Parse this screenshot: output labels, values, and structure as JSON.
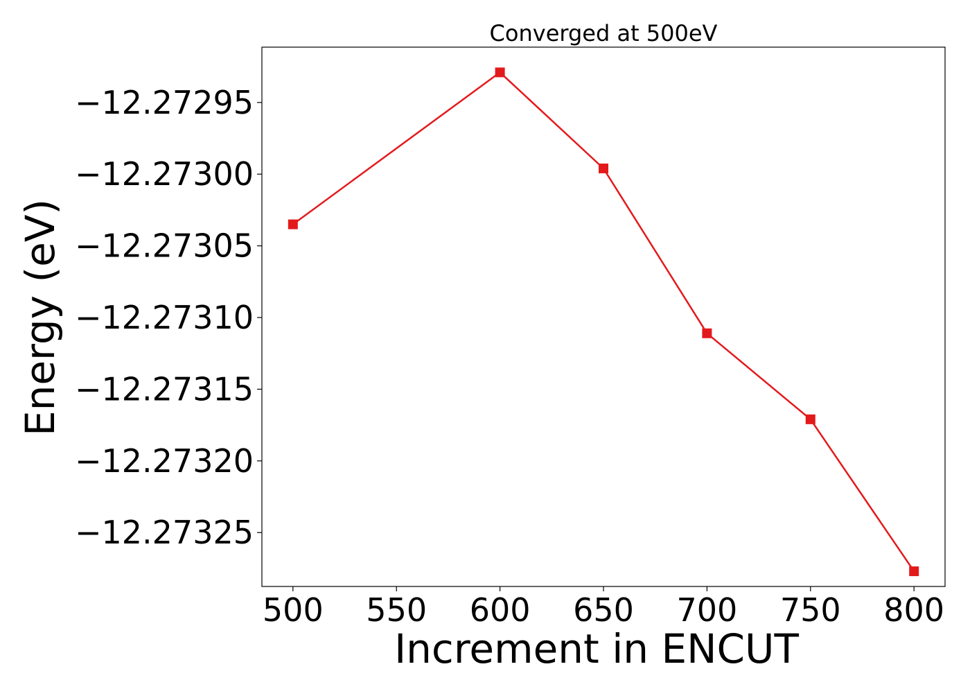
{
  "chart_data": {
    "type": "line",
    "title": "Converged at 500eV",
    "xlabel": "Increment in ENCUT",
    "ylabel": "Energy (eV)",
    "x": [
      500,
      600,
      650,
      700,
      750,
      800
    ],
    "series": [
      {
        "values": [
          -12.273035,
          -12.272929,
          -12.272996,
          -12.273111,
          -12.273171,
          -12.273277
        ],
        "color": "#e31a1c",
        "marker": "square"
      }
    ],
    "xticks": [
      500,
      550,
      600,
      650,
      700,
      750,
      800
    ],
    "xtick_labels": [
      "500",
      "550",
      "600",
      "650",
      "700",
      "750",
      "800"
    ],
    "yticks": [
      -12.27295,
      -12.273,
      -12.27305,
      -12.2731,
      -12.27315,
      -12.2732,
      -12.27325
    ],
    "ytick_labels": [
      "−12.27295",
      "−12.27300",
      "−12.27305",
      "−12.27310",
      "−12.27315",
      "−12.27320",
      "−12.27325"
    ],
    "xlim": [
      485,
      815
    ],
    "ylim": [
      -12.2732876,
      -12.2729114
    ],
    "grid": false,
    "legend": "none"
  }
}
